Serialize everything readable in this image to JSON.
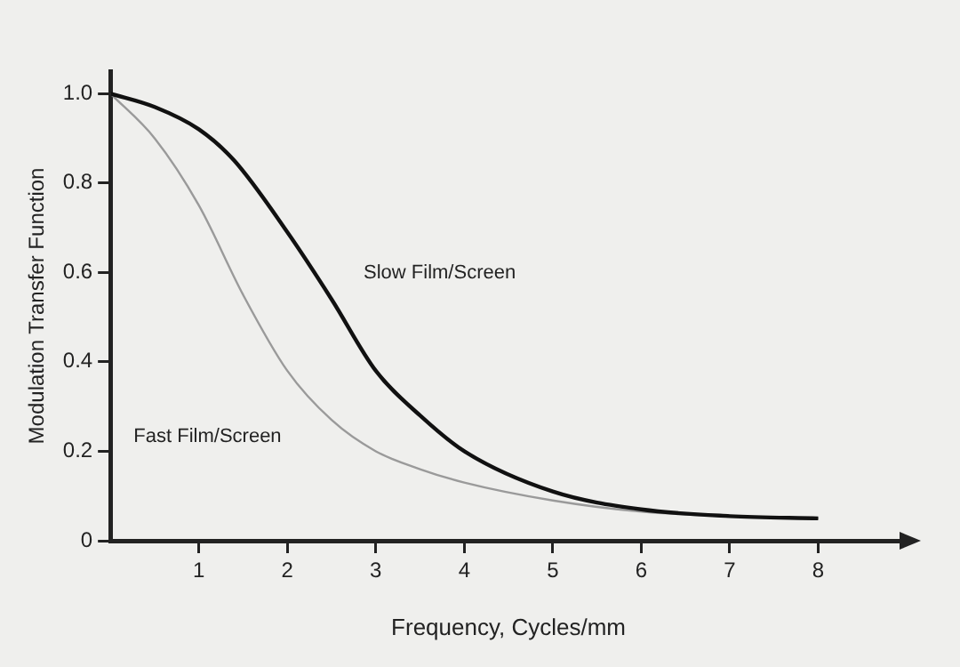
{
  "chart_data": {
    "type": "line",
    "xlabel": "Frequency, Cycles/mm",
    "ylabel": "Modulation Transfer Function",
    "xlim": [
      0,
      9
    ],
    "xticks": [
      1,
      2,
      3,
      4,
      5,
      6,
      7,
      8
    ],
    "ylim": [
      0,
      1.05
    ],
    "yticks": [
      0,
      0.2,
      0.4,
      0.6,
      0.8,
      {
        "value": 1,
        "label": "1.0"
      }
    ],
    "grid": false,
    "legend": false,
    "marker": "none",
    "line_style": "solid",
    "series": [
      {
        "name": "Slow Film/Screen",
        "color": "#111111",
        "x": [
          0,
          0.5,
          1,
          1.4,
          2,
          2.5,
          3,
          3.5,
          4,
          5,
          6,
          7,
          8
        ],
        "values": [
          1,
          0.97,
          0.92,
          0.85,
          0.69,
          0.54,
          0.38,
          0.28,
          0.2,
          0.11,
          0.07,
          0.055,
          0.05
        ]
      },
      {
        "name": "Fast Film/Screen",
        "color": "#9a9a9a",
        "x": [
          0,
          0.5,
          1,
          1.5,
          2,
          2.5,
          3,
          3.5,
          4,
          5,
          6,
          7,
          8
        ],
        "values": [
          1,
          0.9,
          0.75,
          0.55,
          0.38,
          0.27,
          0.2,
          0.16,
          0.13,
          0.09,
          0.065,
          0.055,
          0.05
        ]
      }
    ]
  }
}
